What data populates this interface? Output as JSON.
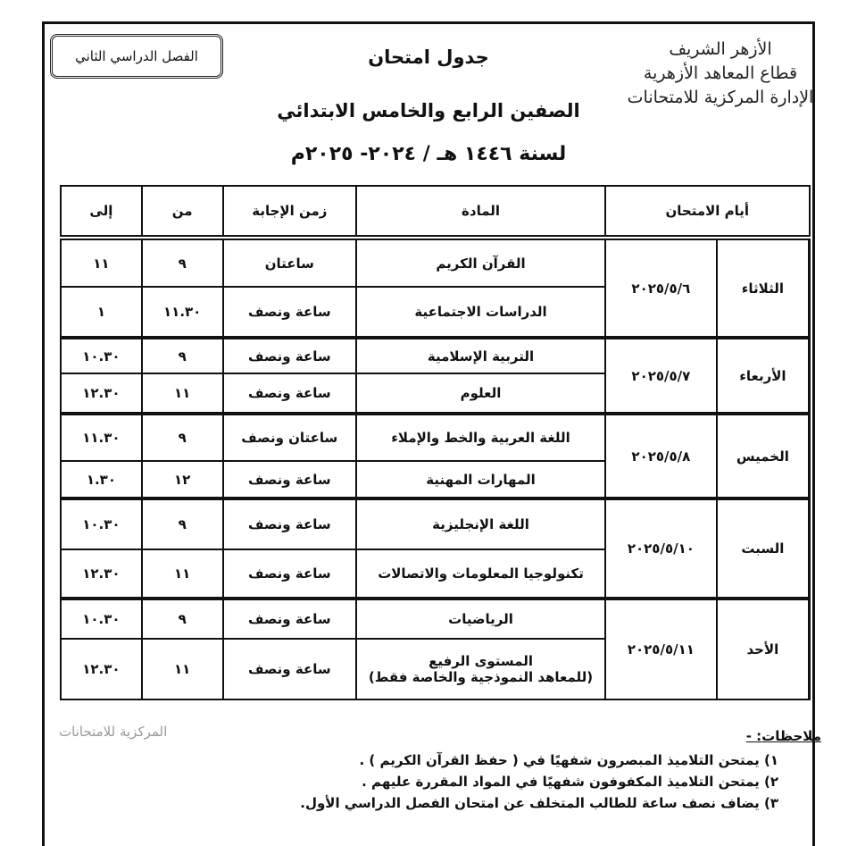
{
  "header": {
    "logo_lines": [
      "الأزهر الشريف",
      "قطاع المعاهد الأزهرية",
      "الإدارة المركزية للامتحانات"
    ],
    "semester": "الفصل الدراسي الثاني",
    "title": "جدول امتحان",
    "grades": "الصفين الرابع والخامس الابتدائي",
    "year": "لسنة ١٤٤٦ هـ / ٢٠٢٤- ٢٠٢٥م"
  },
  "table": {
    "headers": {
      "days": "أيام الامتحان",
      "subject": "المادة",
      "duration": "زمن الإجابة",
      "from": "من",
      "to": "إلى"
    },
    "groups": [
      {
        "day": "الثلاثاء",
        "date": "٢٠٢٥/٥/٦",
        "rows": [
          {
            "subject": "القرآن الكريم",
            "duration": "ساعتان",
            "from": "٩",
            "to": "١١"
          },
          {
            "subject": "الدراسات الاجتماعية",
            "duration": "ساعة ونصف",
            "from": "١١.٣٠",
            "to": "١"
          }
        ]
      },
      {
        "day": "الأربعاء",
        "date": "٢٠٢٥/٥/٧",
        "rows": [
          {
            "subject": "التربية الإسلامية",
            "duration": "ساعة ونصف",
            "from": "٩",
            "to": "١٠.٣٠"
          },
          {
            "subject": "العلوم",
            "duration": "ساعة ونصف",
            "from": "١١",
            "to": "١٢.٣٠"
          }
        ]
      },
      {
        "day": "الخميس",
        "date": "٢٠٢٥/٥/٨",
        "rows": [
          {
            "subject": "اللغة العربية والخط والإملاء",
            "duration": "ساعتان ونصف",
            "from": "٩",
            "to": "١١.٣٠"
          },
          {
            "subject": "المهارات المهنية",
            "duration": "ساعة ونصف",
            "from": "١٢",
            "to": "١.٣٠"
          }
        ]
      },
      {
        "day": "السبت",
        "date": "٢٠٢٥/٥/١٠",
        "rows": [
          {
            "subject": "اللغة الإنجليزية",
            "duration": "ساعة ونصف",
            "from": "٩",
            "to": "١٠.٣٠"
          },
          {
            "subject": "تكنولوجيا المعلومات والاتصالات",
            "duration": "ساعة ونصف",
            "from": "١١",
            "to": "١٢.٣٠"
          }
        ]
      },
      {
        "day": "الأحد",
        "date": "٢٠٢٥/٥/١١",
        "rows": [
          {
            "subject": "الرياضيات",
            "duration": "ساعة ونصف",
            "from": "٩",
            "to": "١٠.٣٠"
          },
          {
            "subject": "المستوى الرفيع",
            "subject_note": "(للمعاهد النموذجية والخاصة فقط)",
            "duration": "ساعة ونصف",
            "from": "١١",
            "to": "١٢.٣٠"
          }
        ]
      }
    ]
  },
  "stamp": "المركزية للامتحانات",
  "notes": {
    "heading": "ملاحظات: -",
    "items": [
      "١)  يمتحن التلاميذ المبصرون شفهيًا في ( حفظ القرآن الكريم ) .",
      "٢)  يمتحن التلاميذ المكفوفون شفهيًا في المواد المقررة عليهم .",
      "٣)  يضاف نصف ساعة للطالب المتخلف عن امتحان الفصل الدراسي الأول."
    ]
  }
}
